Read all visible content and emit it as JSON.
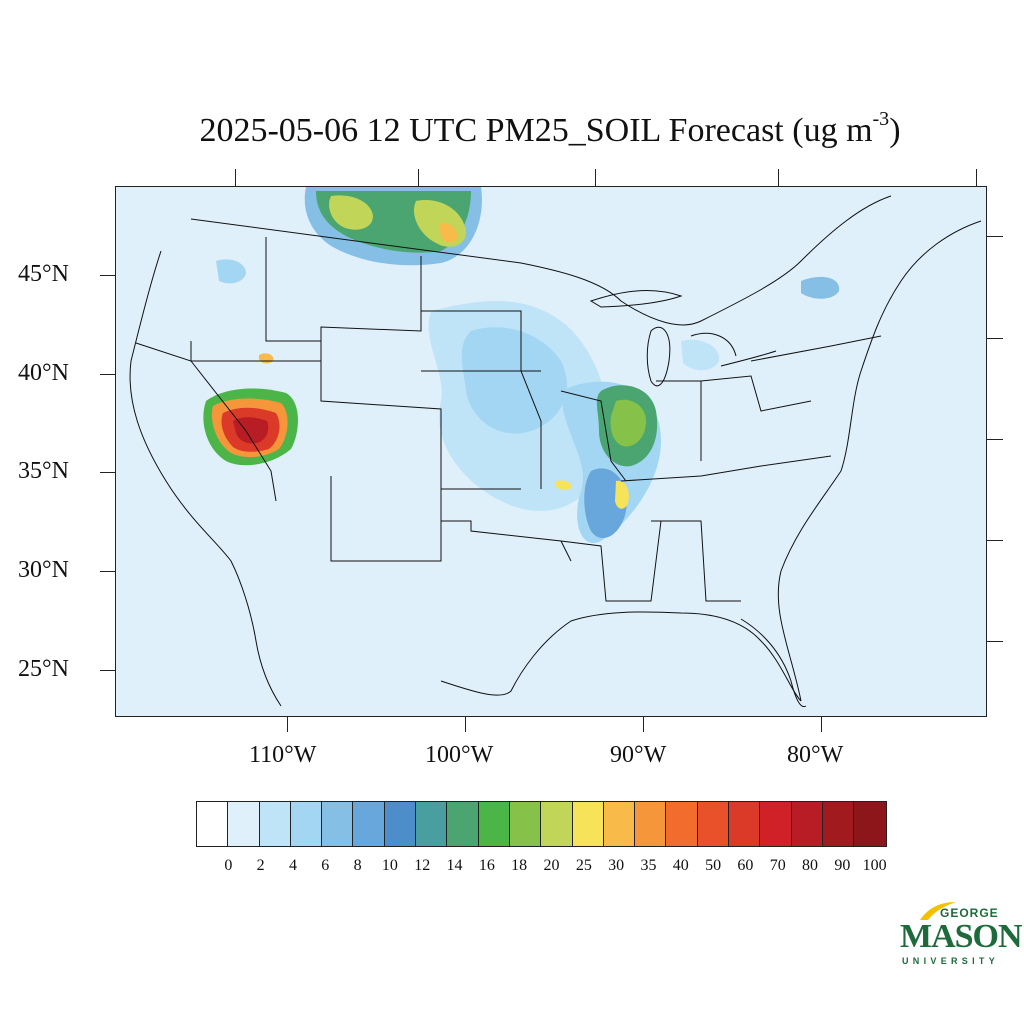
{
  "title": {
    "text": "2025-05-06 12 UTC PM25_SOIL Forecast (ug m",
    "superscript": "-3",
    "closing": ")"
  },
  "latitude_labels": [
    "45°N",
    "40°N",
    "35°N",
    "30°N",
    "25°N"
  ],
  "longitude_labels": [
    "110°W",
    "100°W",
    "90°W",
    "80°W"
  ],
  "colorbar": {
    "colors": [
      "#ffffff",
      "#dff0fb",
      "#c0e4f7",
      "#a2d6f3",
      "#85bfe6",
      "#67a7dc",
      "#4d8dc9",
      "#499f9f",
      "#4aa570",
      "#4bb548",
      "#86c24a",
      "#c1d559",
      "#f6e35a",
      "#f8bb4a",
      "#f6963b",
      "#f26c2e",
      "#e8512a",
      "#dc3a28",
      "#d02129",
      "#b81c25",
      "#a01a1e",
      "#8c1619"
    ],
    "labels": [
      "0",
      "2",
      "4",
      "6",
      "8",
      "10",
      "12",
      "14",
      "16",
      "18",
      "20",
      "25",
      "30",
      "35",
      "40",
      "50",
      "60",
      "70",
      "80",
      "90",
      "100"
    ]
  },
  "logo": {
    "line1": "GEORGE",
    "line2": "MASON",
    "line3": "UNIVERSITY",
    "color": "#1d6b3a",
    "accent": "#f2c200"
  },
  "map": {
    "background_color": "#dff0fb",
    "boundary_color": "#111111"
  }
}
